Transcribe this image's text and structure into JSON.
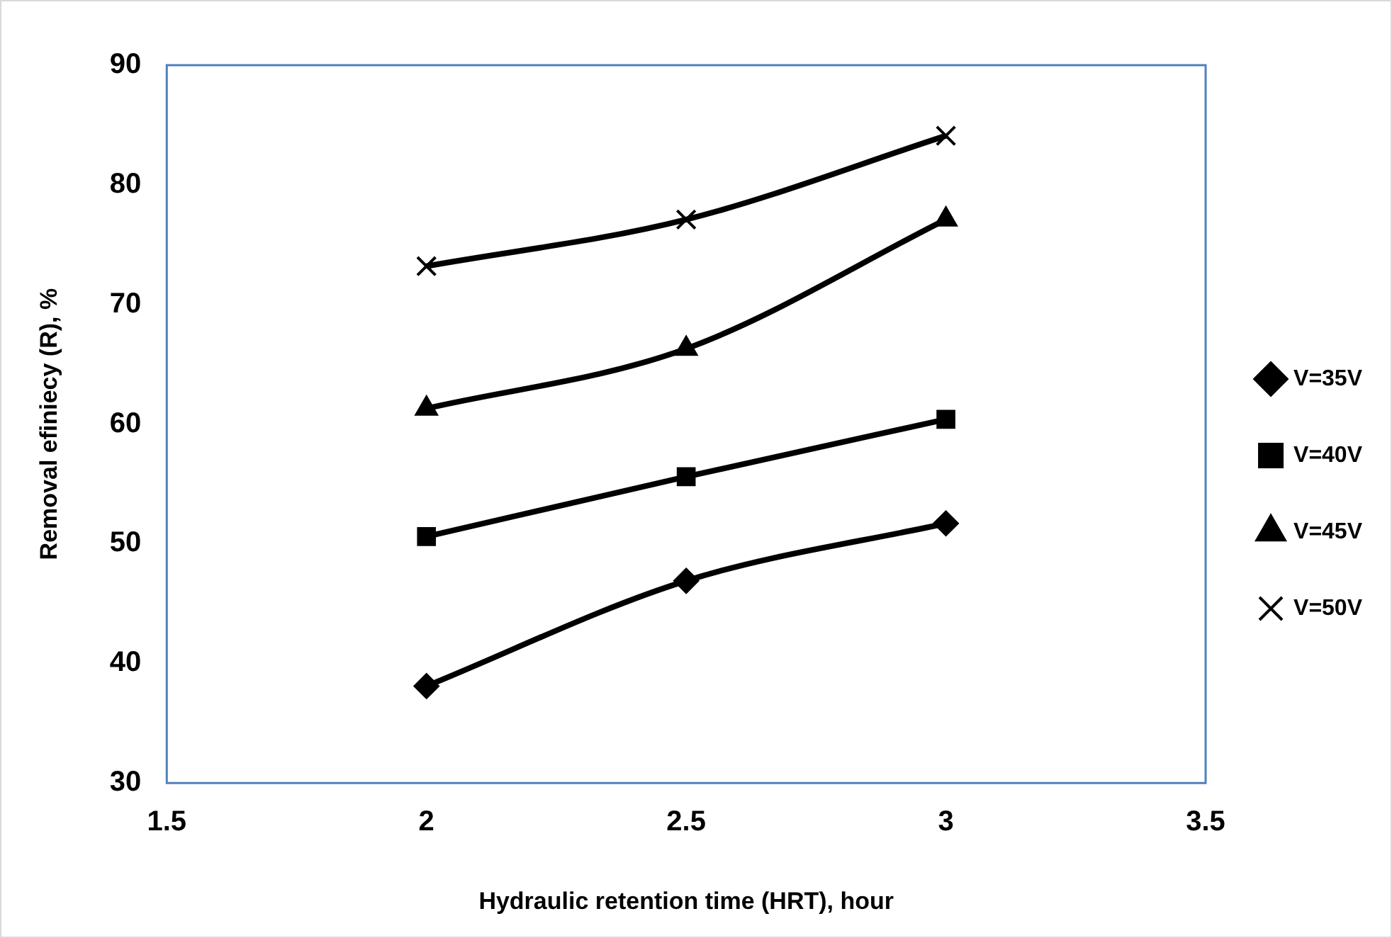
{
  "chart_data": {
    "type": "line",
    "xlabel": "Hydraulic retention time (HRT), hour",
    "ylabel": "Removal efiniecy (R), %",
    "x": [
      2,
      2.5,
      3
    ],
    "xlim": [
      1.5,
      3.5
    ],
    "xticks": [
      1.5,
      2,
      2.5,
      3,
      3.5
    ],
    "ylim": [
      30,
      90
    ],
    "yticks": [
      30,
      40,
      50,
      60,
      70,
      80,
      90
    ],
    "grid": false,
    "legend": "right",
    "series": [
      {
        "name": "V=35V",
        "color": "#000000",
        "marker": "diamond",
        "values": [
          38.1,
          46.9,
          51.7
        ]
      },
      {
        "name": "V=40V",
        "color": "#000000",
        "marker": "square",
        "values": [
          50.6,
          55.6,
          60.4
        ]
      },
      {
        "name": "V=45V",
        "color": "#000000",
        "marker": "triangle",
        "values": [
          61.3,
          66.3,
          77.1
        ]
      },
      {
        "name": "V=50V",
        "color": "#000000",
        "marker": "cross",
        "values": [
          73.2,
          77.1,
          84.1
        ]
      }
    ]
  }
}
